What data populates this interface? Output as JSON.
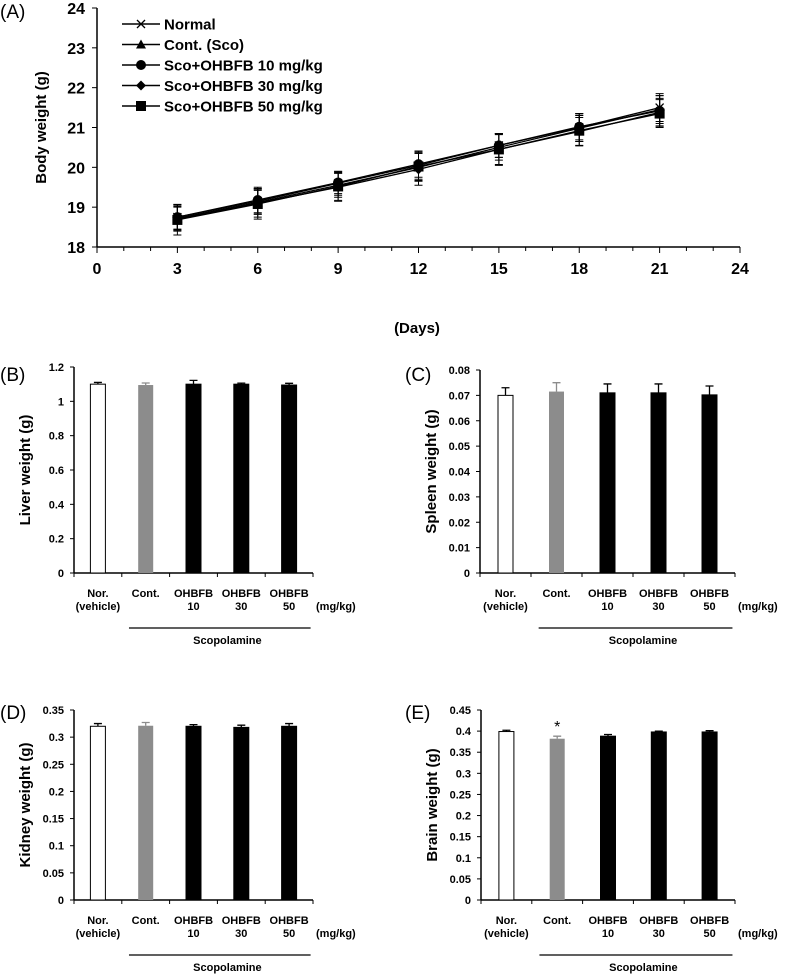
{
  "chart_data": [
    {
      "id": "A",
      "panel_label": "(A)",
      "type": "line",
      "xlabel": "(Days)",
      "ylabel": "Body weight (g)",
      "xlim": [
        0,
        24
      ],
      "ylim": [
        18,
        24
      ],
      "xticks": [
        0,
        3,
        6,
        9,
        12,
        15,
        18,
        21,
        24
      ],
      "yticks": [
        18,
        19,
        20,
        21,
        22,
        23,
        24
      ],
      "legend_position": "top-left",
      "x": [
        3,
        6,
        9,
        12,
        15,
        18,
        21
      ],
      "series": [
        {
          "name": "Normal",
          "marker": "x",
          "values": [
            18.75,
            19.15,
            19.6,
            20.05,
            20.55,
            21.0,
            21.5
          ],
          "errors": [
            0.3,
            0.32,
            0.3,
            0.35,
            0.3,
            0.35,
            0.35
          ]
        },
        {
          "name": "Cont. (Sco)",
          "marker": "triangle",
          "values": [
            18.72,
            19.12,
            19.55,
            20.0,
            20.5,
            20.98,
            21.45
          ],
          "errors": [
            0.3,
            0.3,
            0.3,
            0.35,
            0.32,
            0.33,
            0.35
          ]
        },
        {
          "name": "Sco+OHBFB 10 mg/kg",
          "marker": "circle",
          "values": [
            18.75,
            19.18,
            19.62,
            20.08,
            20.55,
            21.02,
            21.42
          ],
          "errors": [
            0.32,
            0.32,
            0.28,
            0.33,
            0.3,
            0.33,
            0.38
          ]
        },
        {
          "name": "Sco+OHBFB 30 mg/kg",
          "marker": "diamond",
          "values": [
            18.7,
            19.1,
            19.5,
            19.95,
            20.45,
            20.9,
            21.38
          ],
          "errors": [
            0.3,
            0.35,
            0.35,
            0.4,
            0.38,
            0.35,
            0.35
          ]
        },
        {
          "name": "Sco+OHBFB 50 mg/kg",
          "marker": "square",
          "values": [
            18.68,
            19.08,
            19.52,
            20.02,
            20.45,
            20.92,
            21.35
          ],
          "errors": [
            0.38,
            0.38,
            0.35,
            0.35,
            0.4,
            0.38,
            0.35
          ]
        }
      ]
    },
    {
      "id": "B",
      "panel_label": "(B)",
      "type": "bar",
      "ylabel": "Liver weight (g)",
      "ylim": [
        0,
        1.2
      ],
      "yticks": [
        "0",
        "0.2",
        "0.4",
        "0.6",
        "0.8",
        "1",
        "1.2"
      ],
      "categories": [
        [
          "Nor.",
          "(vehicle)"
        ],
        [
          "Cont.",
          ""
        ],
        [
          "OHBFB",
          "10"
        ],
        [
          "OHBFB",
          "30"
        ],
        [
          "OHBFB",
          "50"
        ]
      ],
      "values": [
        1.1,
        1.095,
        1.1,
        1.1,
        1.095
      ],
      "errors": [
        0.01,
        0.012,
        0.022,
        0.006,
        0.01
      ],
      "unit_label": "(mg/kg)",
      "group_label": "Scopolamine",
      "annotations": []
    },
    {
      "id": "C",
      "panel_label": "(C)",
      "type": "bar",
      "ylabel": "Spleen weight (g)",
      "ylim": [
        0,
        0.08
      ],
      "yticks": [
        "0",
        "0.01",
        "0.02",
        "0.03",
        "0.04",
        "0.05",
        "0.06",
        "0.07",
        "0.08"
      ],
      "categories": [
        [
          "Nor.",
          "(vehicle)"
        ],
        [
          "Cont.",
          ""
        ],
        [
          "OHBFB",
          "10"
        ],
        [
          "OHBFB",
          "30"
        ],
        [
          "OHBFB",
          "50"
        ]
      ],
      "values": [
        0.07,
        0.0715,
        0.071,
        0.071,
        0.0702
      ],
      "errors": [
        0.003,
        0.0035,
        0.0035,
        0.0035,
        0.0035
      ],
      "unit_label": "(mg/kg)",
      "group_label": "Scopolamine",
      "annotations": []
    },
    {
      "id": "D",
      "panel_label": "(D)",
      "type": "bar",
      "ylabel": "Kidney weight (g)",
      "ylim": [
        0,
        0.35
      ],
      "yticks": [
        "0",
        "0.05",
        "0.1",
        "0.15",
        "0.2",
        "0.25",
        "0.3",
        "0.35"
      ],
      "categories": [
        [
          "Nor.",
          "(vehicle)"
        ],
        [
          "Cont.",
          ""
        ],
        [
          "OHBFB",
          "10"
        ],
        [
          "OHBFB",
          "30"
        ],
        [
          "OHBFB",
          "50"
        ]
      ],
      "values": [
        0.32,
        0.321,
        0.32,
        0.318,
        0.32
      ],
      "errors": [
        0.005,
        0.006,
        0.003,
        0.004,
        0.005
      ],
      "unit_label": "(mg/kg)",
      "group_label": "Scopolamine",
      "annotations": []
    },
    {
      "id": "E",
      "panel_label": "(E)",
      "type": "bar",
      "ylabel": "Brain weight (g)",
      "ylim": [
        0,
        0.45
      ],
      "yticks": [
        "0",
        "0.05",
        "0.1",
        "0.15",
        "0.2",
        "0.25",
        "0.3",
        "0.35",
        "0.4",
        "0.45"
      ],
      "categories": [
        [
          "Nor.",
          "(vehicle)"
        ],
        [
          "Cont.",
          ""
        ],
        [
          "OHBFB",
          "10"
        ],
        [
          "OHBFB",
          "30"
        ],
        [
          "OHBFB",
          "50"
        ]
      ],
      "values": [
        0.399,
        0.382,
        0.388,
        0.398,
        0.398
      ],
      "errors": [
        0.003,
        0.006,
        0.004,
        0.002,
        0.003
      ],
      "unit_label": "(mg/kg)",
      "group_label": "Scopolamine",
      "annotations": [
        {
          "category_index": 1,
          "text": "*"
        }
      ]
    }
  ],
  "colors": {
    "axis": "#000000",
    "normal_bar": "#ffffff",
    "control_bar": "#8c8c8c",
    "treatment_bar": "#000000"
  }
}
